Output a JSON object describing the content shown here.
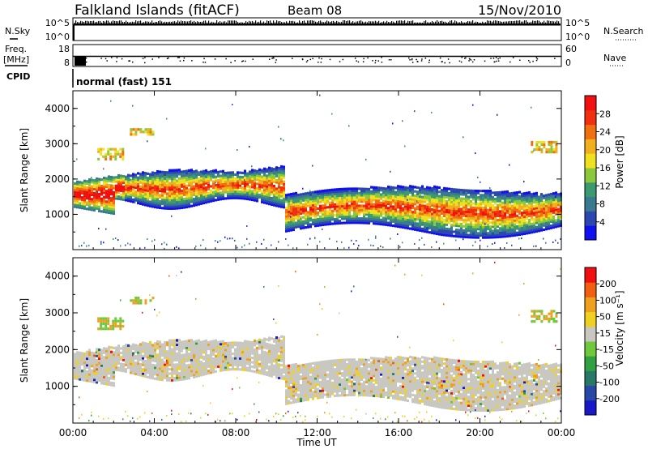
{
  "header": {
    "station": "Falkland Islands (fitACF)",
    "beam": "Beam 08",
    "date": "15/Nov/2010"
  },
  "panels": {
    "nsky": {
      "label": "N.Sky",
      "left_ticks": [
        "10^5",
        "10^0"
      ],
      "right_ticks": [
        "10^5",
        "10^0"
      ],
      "right_label": "N.Search"
    },
    "freq": {
      "label": "Freq.",
      "unit": "[MHz]",
      "left_ticks": [
        "18",
        "8"
      ],
      "right_ticks": [
        "60",
        "0"
      ],
      "right_label": "Nave"
    },
    "cpid": {
      "label": "CPID",
      "text": "normal (fast) 151"
    }
  },
  "chart_data": [
    {
      "type": "heatmap",
      "name": "power",
      "title": "",
      "xlabel": "",
      "ylabel": "Slant Range [km]",
      "xlim": [
        0,
        24
      ],
      "ylim": [
        0,
        4500
      ],
      "yticks": [
        "1000",
        "2000",
        "3000",
        "4000"
      ],
      "colorbar": {
        "label": "Power [dB]",
        "ticks": [
          "4",
          "8",
          "12",
          "16",
          "20",
          "24",
          "28"
        ],
        "colors": [
          "#1010f0",
          "#2c48b0",
          "#3a7a90",
          "#3c9a70",
          "#8cc83c",
          "#f0e020",
          "#f0b020",
          "#f07010",
          "#f03010",
          "#f01010"
        ]
      }
    },
    {
      "type": "heatmap",
      "name": "velocity",
      "title": "",
      "xlabel": "Time UT",
      "ylabel": "Slant Range [km]",
      "xlim": [
        0,
        24
      ],
      "ylim": [
        0,
        4500
      ],
      "yticks": [
        "1000",
        "2000",
        "3000",
        "4000"
      ],
      "xticks": [
        "00:00",
        "04:00",
        "08:00",
        "12:00",
        "16:00",
        "20:00",
        "00:00"
      ],
      "colorbar": {
        "label": "Velocity [m s⁻¹]",
        "ticks": [
          "200",
          "100",
          "50",
          "15",
          "-15",
          "-50",
          "-100",
          "-200"
        ],
        "colors": [
          "#1818c8",
          "#2848a8",
          "#287868",
          "#30a040",
          "#70c83c",
          "#c8c8c0",
          "#f0d020",
          "#f0a020",
          "#f06010",
          "#f01010"
        ]
      }
    }
  ]
}
